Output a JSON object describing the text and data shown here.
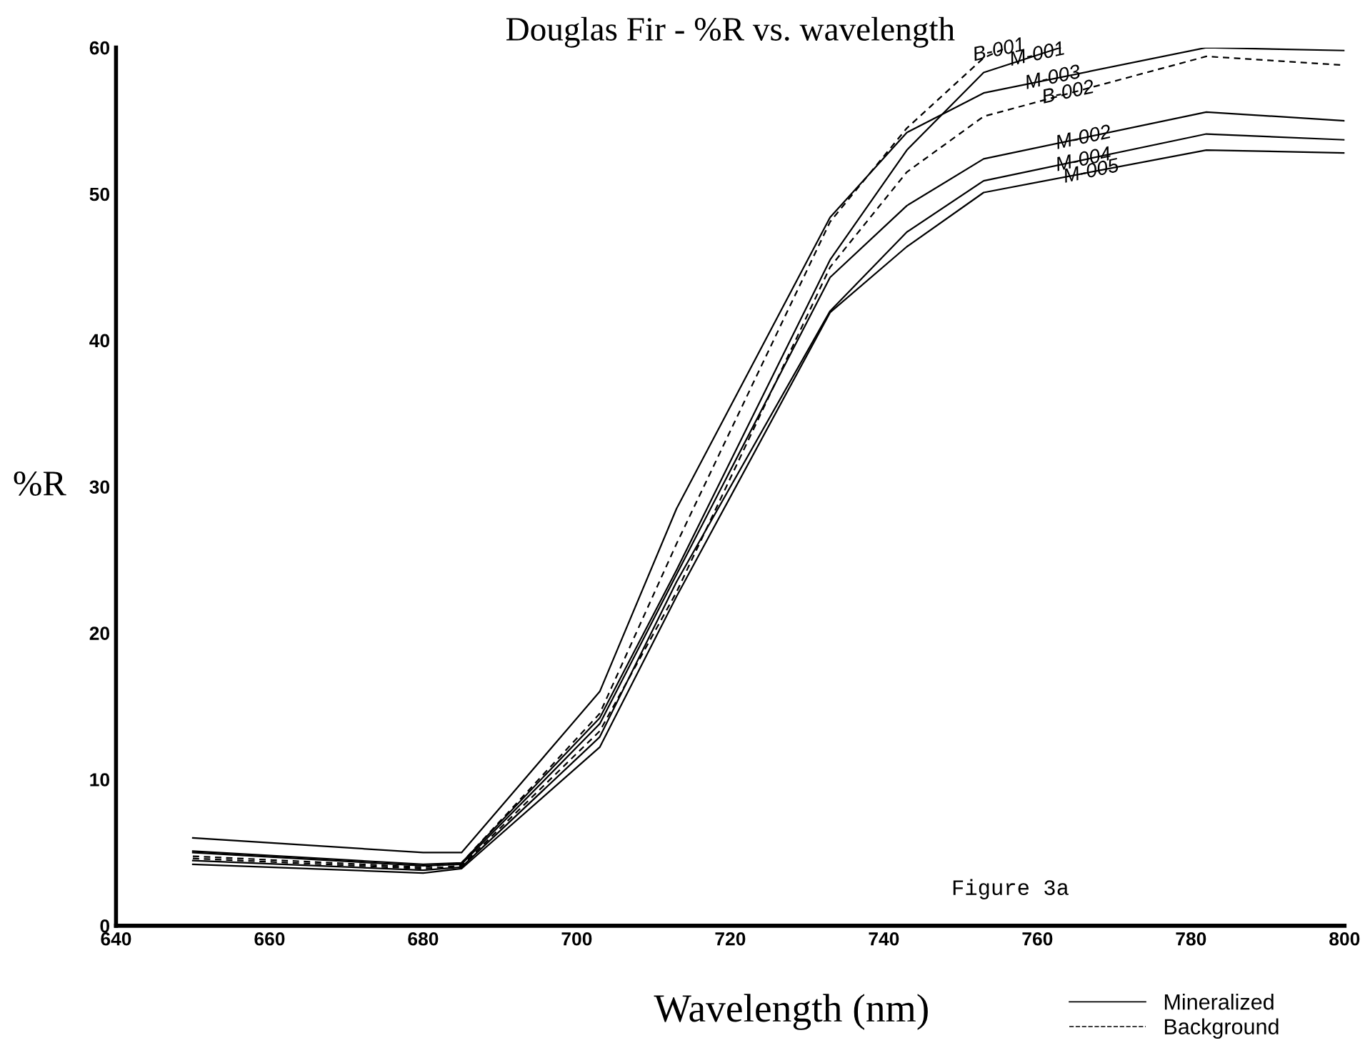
{
  "chart_data": {
    "type": "line",
    "title": "Douglas Fir - %R vs. wavelength",
    "xlabel": "Wavelength (nm)",
    "ylabel": "%R",
    "x": [
      650,
      680,
      685,
      703,
      713,
      733,
      743,
      753,
      782,
      800
    ],
    "series": [
      {
        "name": "Mineralized",
        "color": "#000000",
        "line_style": "solid",
        "values": [
          6.0,
          5.0,
          5.0,
          16.0,
          28.5,
          48.4,
          54.2,
          56.9,
          60.0,
          59.8
        ]
      },
      {
        "color": "#000000",
        "line_style": "solid",
        "x": [
          650,
          680,
          685,
          703,
          713,
          733,
          743,
          753,
          763
        ],
        "values": [
          5.1,
          4.2,
          4.3,
          14.2,
          24.3,
          45.5,
          53.0,
          58.3,
          60.0
        ]
      },
      {
        "name": "Background",
        "color": "#000000",
        "line_style": "dashed",
        "x": [
          650,
          680,
          685,
          703,
          713,
          733,
          743,
          753,
          756
        ],
        "values": [
          4.75,
          4.0,
          4.3,
          14.5,
          26.1,
          48.1,
          54.5,
          59.3,
          60.0
        ]
      },
      {
        "color": "#000000",
        "line_style": "dashed",
        "values": [
          4.6,
          3.9,
          4.1,
          13.3,
          22.8,
          45.0,
          51.5,
          55.3,
          59.4,
          58.8
        ]
      },
      {
        "color": "#000000",
        "line_style": "solid",
        "values": [
          5.0,
          4.1,
          4.2,
          13.8,
          24.0,
          44.3,
          49.2,
          52.4,
          55.6,
          55.0
        ]
      },
      {
        "color": "#000000",
        "line_style": "solid",
        "values": [
          4.45,
          3.8,
          4.0,
          12.9,
          23.5,
          42.0,
          47.4,
          50.9,
          54.1,
          53.7
        ]
      },
      {
        "color": "#000000",
        "line_style": "solid",
        "values": [
          4.2,
          3.6,
          3.9,
          12.2,
          22.5,
          41.9,
          46.4,
          50.1,
          53.0,
          52.8
        ]
      }
    ],
    "xlim": [
      640,
      800
    ],
    "xticks": [
      640,
      660,
      680,
      700,
      720,
      740,
      760,
      780,
      800
    ],
    "ylim": [
      0,
      60
    ],
    "yticks": [
      0,
      10,
      20,
      30,
      40,
      50,
      60
    ],
    "grid": false,
    "legend": "bottom right",
    "marker": "none",
    "annotations": [
      {
        "text": "B-001",
        "x": 755,
        "y": 59.8
      },
      {
        "text": "M-001",
        "x": 760,
        "y": 59.5
      },
      {
        "text": "M-003",
        "x": 762,
        "y": 57.9
      },
      {
        "text": "B-002",
        "x": 764,
        "y": 56.9
      },
      {
        "text": "M-002",
        "x": 766,
        "y": 53.8
      },
      {
        "text": "M-004",
        "x": 766,
        "y": 52.3
      },
      {
        "text": "M-005",
        "x": 767,
        "y": 51.5
      },
      "Figure 3a"
    ]
  }
}
